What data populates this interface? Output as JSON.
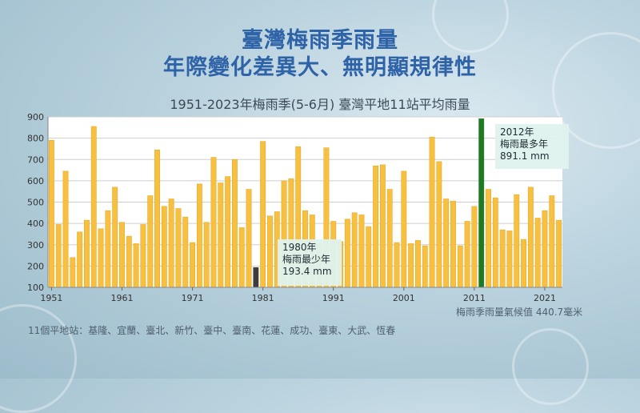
{
  "header": {
    "title_line1": "臺灣梅雨季雨量",
    "title_line2": "年際變化差異大、無明顯規律性",
    "subtitle": "1951-2023年梅雨季(5-6月) 臺灣平地11站平均雨量"
  },
  "colors": {
    "bar": "#f8c040",
    "bar_stroke": "#e3a41c",
    "max_bar": "#1f7a24",
    "min_bar": "#3d3d3d"
  },
  "chart_data": {
    "type": "bar",
    "x": [
      1951,
      1952,
      1953,
      1954,
      1955,
      1956,
      1957,
      1958,
      1959,
      1960,
      1961,
      1962,
      1963,
      1964,
      1965,
      1966,
      1967,
      1968,
      1969,
      1970,
      1971,
      1972,
      1973,
      1974,
      1975,
      1976,
      1977,
      1978,
      1979,
      1980,
      1981,
      1982,
      1983,
      1984,
      1985,
      1986,
      1987,
      1988,
      1989,
      1990,
      1991,
      1992,
      1993,
      1994,
      1995,
      1996,
      1997,
      1998,
      1999,
      2000,
      2001,
      2002,
      2003,
      2004,
      2005,
      2006,
      2007,
      2008,
      2009,
      2010,
      2011,
      2012,
      2013,
      2014,
      2015,
      2016,
      2017,
      2018,
      2019,
      2020,
      2021,
      2022,
      2023
    ],
    "values": [
      790,
      395,
      645,
      240,
      360,
      415,
      855,
      375,
      460,
      570,
      405,
      340,
      305,
      395,
      530,
      745,
      480,
      515,
      470,
      430,
      310,
      585,
      405,
      710,
      590,
      620,
      700,
      380,
      560,
      193.4,
      785,
      435,
      455,
      600,
      610,
      760,
      460,
      440,
      305,
      755,
      410,
      315,
      420,
      450,
      440,
      385,
      670,
      675,
      560,
      310,
      645,
      305,
      320,
      295,
      805,
      690,
      515,
      505,
      295,
      410,
      480,
      891.1,
      560,
      520,
      370,
      365,
      535,
      325,
      570,
      425,
      460,
      530,
      415
    ],
    "ylim": [
      100,
      900
    ],
    "yticks": [
      100,
      200,
      300,
      400,
      500,
      600,
      700,
      800,
      900
    ],
    "xtick_labels": [
      "1951",
      "1961",
      "1971",
      "1981",
      "1991",
      "2001",
      "2011",
      "2021"
    ],
    "highlight_max": {
      "year": 2012,
      "line1": "2012年",
      "line2": "梅雨最多年",
      "line3": "891.1 mm"
    },
    "highlight_min": {
      "year": 1980,
      "line1": "1980年",
      "line2": "梅雨最少年",
      "line3": "193.4 mm"
    },
    "climatology_note": "梅雨季雨量氣候值 440.7毫米"
  },
  "footnote": "11個平地站：基隆、宜蘭、臺北、新竹、臺中、臺南、花蓮、成功、臺東、大武、恆春"
}
